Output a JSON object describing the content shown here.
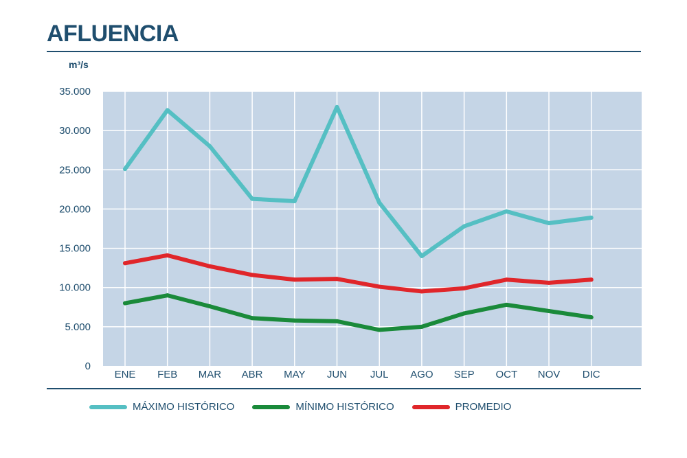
{
  "title": "AFLUENCIA",
  "chart_data": {
    "type": "line",
    "ylabel": "m³/s",
    "ylim": [
      0,
      35000
    ],
    "y_ticks": [
      0,
      5000,
      10000,
      15000,
      20000,
      25000,
      30000,
      35000
    ],
    "y_tick_labels": [
      "0",
      "5.000",
      "10.000",
      "15.000",
      "20.000",
      "25.000",
      "30.000",
      "35.000"
    ],
    "categories": [
      "ENE",
      "FEB",
      "MAR",
      "ABR",
      "MAY",
      "JUN",
      "JUL",
      "AGO",
      "SEP",
      "OCT",
      "NOV",
      "DIC"
    ],
    "grid": true,
    "legend_position": "bottom",
    "series": [
      {
        "name": "MÁXIMO HISTÓRICO",
        "color": "#55bfc3",
        "values": [
          25100,
          32600,
          28000,
          21300,
          21000,
          33000,
          20800,
          14000,
          17800,
          19700,
          18200,
          18900
        ]
      },
      {
        "name": "MÍNIMO HISTÓRICO",
        "color": "#1a8a3a",
        "values": [
          8000,
          9000,
          7600,
          6100,
          5800,
          5700,
          4600,
          5000,
          6700,
          7800,
          7000,
          6200
        ]
      },
      {
        "name": "PROMEDIO",
        "color": "#e0262a",
        "values": [
          13100,
          14100,
          12700,
          11600,
          11000,
          11100,
          10100,
          9500,
          9900,
          11000,
          10600,
          11000
        ]
      }
    ]
  }
}
